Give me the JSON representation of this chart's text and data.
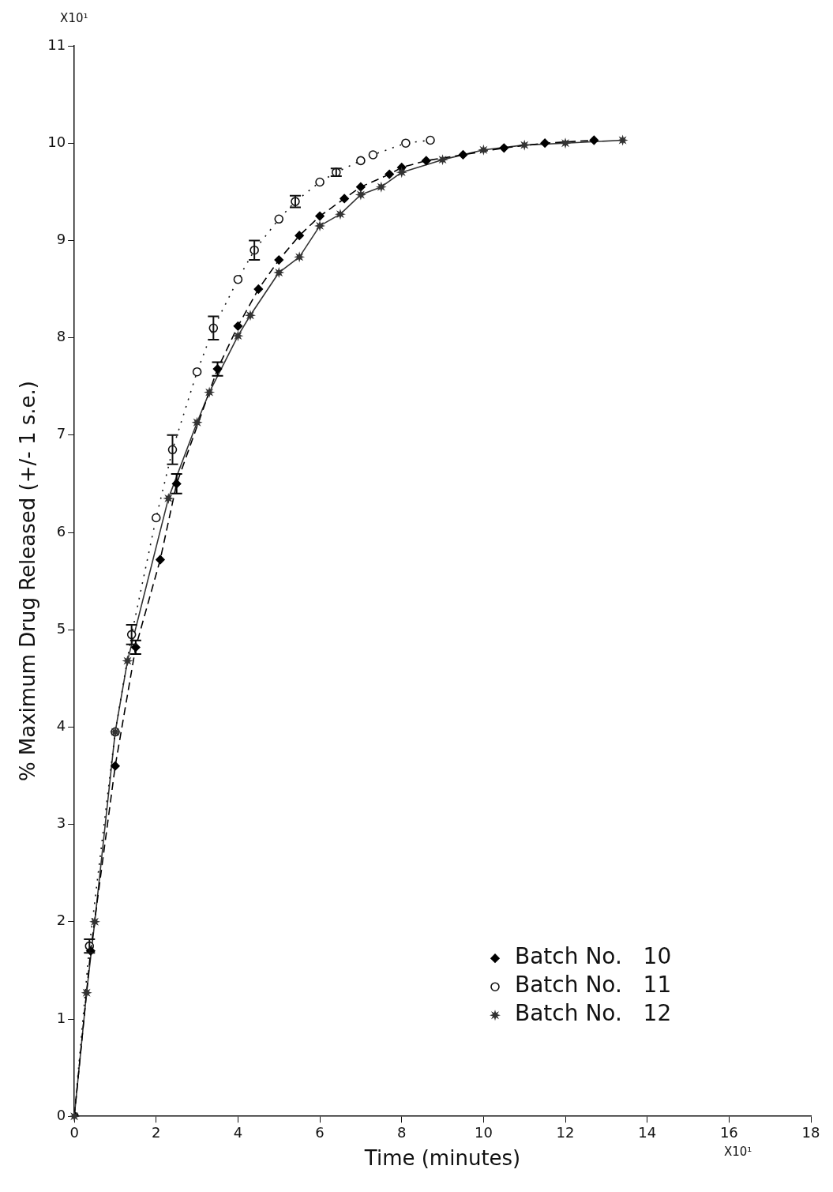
{
  "chart_data": {
    "type": "line",
    "xlabel": "Time (minutes)",
    "ylabel": "% Maximum Drug Released (+/- 1 s.e.)",
    "annotations": [
      "X10¹",
      "X10¹"
    ],
    "xlim": [
      0,
      18
    ],
    "xticks": [
      0,
      2,
      4,
      6,
      8,
      10,
      12,
      14,
      16,
      18
    ],
    "ylim": [
      0,
      11
    ],
    "yticks": [
      0,
      1,
      2,
      3,
      4,
      5,
      6,
      7,
      8,
      9,
      10,
      11
    ],
    "grid": false,
    "legend": "bottom right",
    "series": [
      {
        "name": "Batch No.   10",
        "color": "#000000",
        "marker": "diamond",
        "line_style": "dashed",
        "x": [
          0,
          0.4,
          1.0,
          1.5,
          2.1,
          2.5,
          3.5,
          4.0,
          4.5,
          5.0,
          5.5,
          6.0,
          6.6,
          7.0,
          7.7,
          8.0,
          8.6,
          9.5,
          10.5,
          11.5,
          12.7
        ],
        "values": [
          0,
          1.7,
          3.6,
          4.82,
          5.72,
          6.5,
          7.68,
          8.12,
          8.5,
          8.8,
          9.05,
          9.25,
          9.43,
          9.55,
          9.68,
          9.75,
          9.82,
          9.88,
          9.95,
          10.0,
          10.03
        ],
        "errors": [
          null,
          null,
          null,
          0.07,
          null,
          0.1,
          0.07,
          null,
          null,
          null,
          null,
          null,
          null,
          null,
          null,
          null,
          null,
          null,
          null,
          null,
          null
        ]
      },
      {
        "name": "Batch No.   11",
        "color": "#111111",
        "marker": "circle",
        "line_style": "dotted",
        "x": [
          0,
          0.37,
          1.0,
          1.4,
          2.0,
          2.4,
          3.0,
          3.4,
          4.0,
          4.4,
          5.0,
          5.4,
          6.0,
          6.4,
          7.0,
          7.3,
          8.1,
          8.7
        ],
        "values": [
          0,
          1.75,
          3.95,
          4.95,
          6.15,
          6.85,
          7.65,
          8.1,
          8.6,
          8.9,
          9.22,
          9.4,
          9.6,
          9.7,
          9.82,
          9.88,
          10.0,
          10.03
        ],
        "errors": [
          null,
          0.07,
          null,
          0.1,
          null,
          0.15,
          null,
          0.12,
          null,
          0.1,
          null,
          0.06,
          null,
          0.04,
          null,
          null,
          null,
          null
        ]
      },
      {
        "name": "Batch No.   12",
        "color": "#333333",
        "marker": "star",
        "line_style": "solid",
        "x": [
          0,
          0.3,
          0.5,
          1.0,
          1.3,
          2.3,
          3.0,
          3.3,
          4.0,
          4.3,
          5.0,
          5.5,
          6.0,
          6.5,
          7.0,
          7.5,
          8.0,
          9.0,
          10.0,
          11.0,
          12.0,
          13.4
        ],
        "values": [
          0,
          1.27,
          2.0,
          3.95,
          4.68,
          6.35,
          7.13,
          7.44,
          8.02,
          8.23,
          8.67,
          8.83,
          9.15,
          9.27,
          9.47,
          9.55,
          9.7,
          9.83,
          9.93,
          9.98,
          10.0,
          10.03
        ]
      }
    ]
  }
}
